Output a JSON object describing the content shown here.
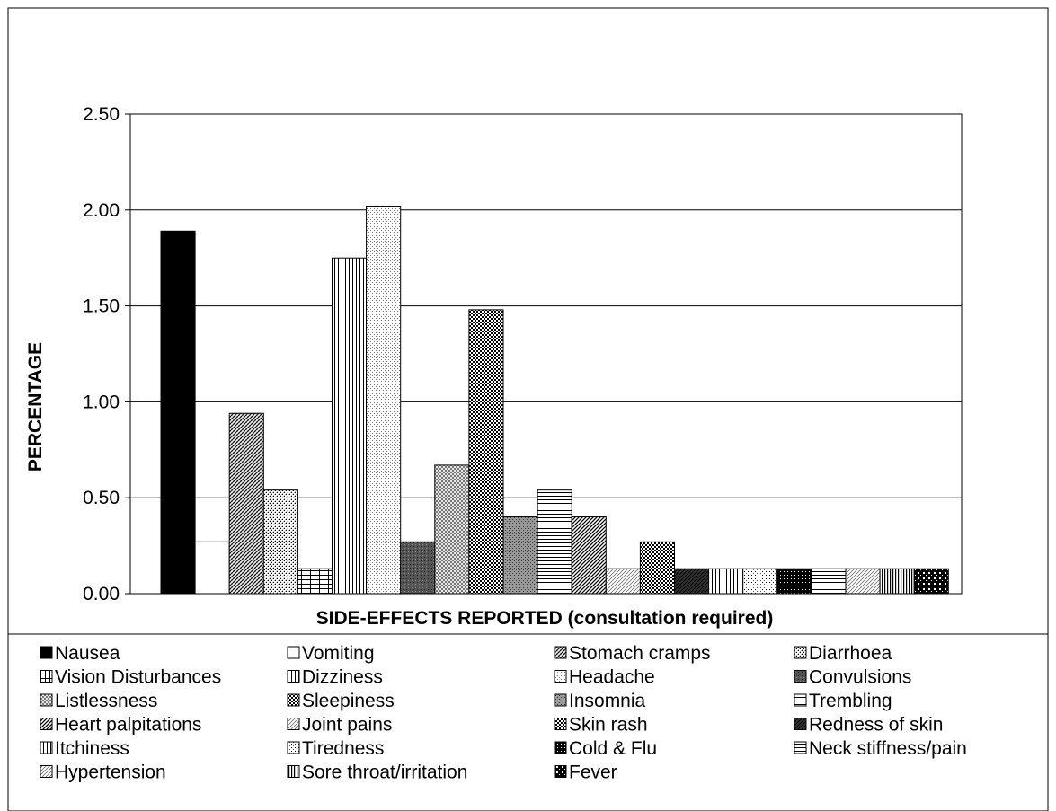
{
  "chart_data": {
    "type": "bar",
    "xlabel": "SIDE-EFFECTS REPORTED (consultation required)",
    "ylabel": "PERCENTAGE",
    "ylim": [
      0,
      2.5
    ],
    "yticks": [
      "0.00",
      "0.50",
      "1.00",
      "1.50",
      "2.00",
      "2.50"
    ],
    "grid": true,
    "legend_position": "bottom",
    "categories": [
      "Nausea",
      "Vomiting",
      "Stomach cramps",
      "Diarrhoea",
      "Vision Disturbances",
      "Dizziness",
      "Headache",
      "Convulsions",
      "Listlessness",
      "Sleepiness",
      "Insomnia",
      "Trembling",
      "Heart palpitations",
      "Joint pains",
      "Skin rash",
      "Redness of skin",
      "Itchiness",
      "Tiredness",
      "Cold & Flu",
      "Neck stiffness/pain",
      "Hypertension",
      "Sore throat/irritation",
      "Fever"
    ],
    "values": [
      1.89,
      0.27,
      0.94,
      0.54,
      0.13,
      1.75,
      2.02,
      0.27,
      0.67,
      1.48,
      0.4,
      0.54,
      0.4,
      0.13,
      0.27,
      0.13,
      0.13,
      0.13,
      0.13,
      0.13,
      0.13,
      0.13,
      0.13
    ],
    "patterns": [
      "solid-black",
      "white",
      "dense-diagonal",
      "fine-check",
      "grid",
      "vertical-lines",
      "light-dots",
      "dark-dots",
      "checker-light",
      "checker-heavy",
      "medium-dots",
      "horizontal-lines",
      "diagonal",
      "diagonal-light",
      "checker-heavy",
      "dark-hatch",
      "vertical-lines",
      "sparse-dots",
      "dark-check",
      "horizontal-lines",
      "diagonal-light",
      "vertical-lines-dense",
      "fever-dots"
    ]
  }
}
